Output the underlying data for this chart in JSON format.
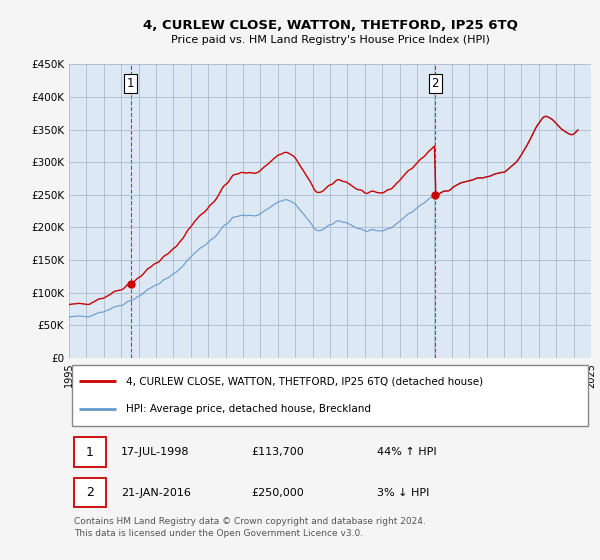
{
  "title": "4, CURLEW CLOSE, WATTON, THETFORD, IP25 6TQ",
  "subtitle": "Price paid vs. HM Land Registry's House Price Index (HPI)",
  "legend_line1": "4, CURLEW CLOSE, WATTON, THETFORD, IP25 6TQ (detached house)",
  "legend_line2": "HPI: Average price, detached house, Breckland",
  "footer": "Contains HM Land Registry data © Crown copyright and database right 2024.\nThis data is licensed under the Open Government Licence v3.0.",
  "transaction1_label": "1",
  "transaction1_date": "17-JUL-1998",
  "transaction1_price": "£113,700",
  "transaction1_hpi": "44% ↑ HPI",
  "transaction2_label": "2",
  "transaction2_date": "21-JAN-2016",
  "transaction2_price": "£250,000",
  "transaction2_hpi": "3% ↓ HPI",
  "price_color": "#cc0000",
  "hpi_color": "#6699cc",
  "ylim": [
    0,
    450000
  ],
  "yticks": [
    0,
    50000,
    100000,
    150000,
    200000,
    250000,
    300000,
    350000,
    400000,
    450000
  ],
  "background_color": "#dce9f5",
  "plot_bg_color": "#dce9f5",
  "grid_color": "#aabbcc",
  "transaction1_x": 1998.54,
  "transaction1_y": 113700,
  "transaction2_x": 2016.05,
  "transaction2_y": 250000,
  "xticks": [
    1995,
    1996,
    1997,
    1998,
    1999,
    2000,
    2001,
    2002,
    2003,
    2004,
    2005,
    2006,
    2007,
    2008,
    2009,
    2010,
    2011,
    2012,
    2013,
    2014,
    2015,
    2016,
    2017,
    2018,
    2019,
    2020,
    2021,
    2022,
    2023,
    2024,
    2025
  ]
}
